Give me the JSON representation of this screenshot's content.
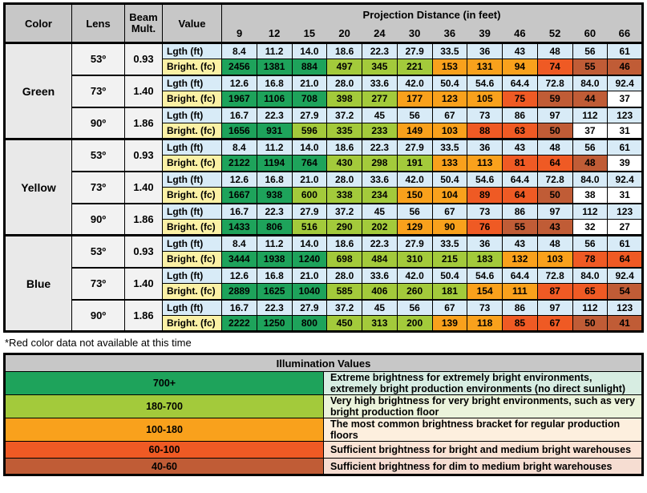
{
  "chart_data": {
    "type": "table",
    "headers": {
      "color": "Color",
      "lens": "Lens",
      "beam": "Beam Mult.",
      "value": "Value",
      "projection": "Projection Distance (in feet)"
    },
    "distances": [
      "9",
      "12",
      "15",
      "20",
      "24",
      "30",
      "36",
      "39",
      "46",
      "52",
      "60",
      "66"
    ],
    "row_labels": {
      "lgth": "Lgth (ft)",
      "bright": "Bright. (fc)"
    },
    "sections": [
      {
        "color": "Green",
        "groups": [
          {
            "lens": "53º",
            "beam": "0.93",
            "lgth": [
              "8.4",
              "11.2",
              "14.0",
              "18.6",
              "22.3",
              "27.9",
              "33.5",
              "36",
              "43",
              "48",
              "56",
              "61"
            ],
            "bright": [
              "2456",
              "1381",
              "884",
              "497",
              "345",
              "221",
              "153",
              "131",
              "94",
              "74",
              "55",
              "46"
            ],
            "bright_colors": [
              "dg",
              "dg",
              "dg",
              "lg",
              "lg",
              "lg",
              "or",
              "or",
              "or",
              "ro",
              "br",
              "br"
            ]
          },
          {
            "lens": "73º",
            "beam": "1.40",
            "lgth": [
              "12.6",
              "16.8",
              "21.0",
              "28.0",
              "33.6",
              "42.0",
              "50.4",
              "54.6",
              "64.4",
              "72.8",
              "84.0",
              "92.4"
            ],
            "bright": [
              "1967",
              "1106",
              "708",
              "398",
              "277",
              "177",
              "123",
              "105",
              "75",
              "59",
              "44",
              "37"
            ],
            "bright_colors": [
              "dg",
              "dg",
              "dg",
              "lg",
              "lg",
              "or",
              "or",
              "or",
              "ro",
              "br",
              "br",
              "wh"
            ]
          },
          {
            "lens": "90º",
            "beam": "1.86",
            "lgth": [
              "16.7",
              "22.3",
              "27.9",
              "37.2",
              "45",
              "56",
              "67",
              "73",
              "86",
              "97",
              "112",
              "123"
            ],
            "bright": [
              "1656",
              "931",
              "596",
              "335",
              "233",
              "149",
              "103",
              "88",
              "63",
              "50",
              "37",
              "31"
            ],
            "bright_colors": [
              "dg",
              "dg",
              "lg",
              "lg",
              "lg",
              "or",
              "or",
              "ro",
              "ro",
              "br",
              "wh",
              "wh"
            ]
          }
        ]
      },
      {
        "color": "Yellow",
        "groups": [
          {
            "lens": "53º",
            "beam": "0.93",
            "lgth": [
              "8.4",
              "11.2",
              "14.0",
              "18.6",
              "22.3",
              "27.9",
              "33.5",
              "36",
              "43",
              "48",
              "56",
              "61"
            ],
            "bright": [
              "2122",
              "1194",
              "764",
              "430",
              "298",
              "191",
              "133",
              "113",
              "81",
              "64",
              "48",
              "39"
            ],
            "bright_colors": [
              "dg",
              "dg",
              "dg",
              "lg",
              "lg",
              "lg",
              "or",
              "or",
              "ro",
              "ro",
              "br",
              "wh"
            ]
          },
          {
            "lens": "73º",
            "beam": "1.40",
            "lgth": [
              "12.6",
              "16.8",
              "21.0",
              "28.0",
              "33.6",
              "42.0",
              "50.4",
              "54.6",
              "64.4",
              "72.8",
              "84.0",
              "92.4"
            ],
            "bright": [
              "1667",
              "938",
              "600",
              "338",
              "234",
              "150",
              "104",
              "89",
              "64",
              "50",
              "38",
              "31"
            ],
            "bright_colors": [
              "dg",
              "dg",
              "lg",
              "lg",
              "lg",
              "or",
              "or",
              "ro",
              "ro",
              "br",
              "wh",
              "wh"
            ]
          },
          {
            "lens": "90º",
            "beam": "1.86",
            "lgth": [
              "16.7",
              "22.3",
              "27.9",
              "37.2",
              "45",
              "56",
              "67",
              "73",
              "86",
              "97",
              "112",
              "123"
            ],
            "bright": [
              "1433",
              "806",
              "516",
              "290",
              "202",
              "129",
              "90",
              "76",
              "55",
              "43",
              "32",
              "27"
            ],
            "bright_colors": [
              "dg",
              "dg",
              "lg",
              "lg",
              "lg",
              "or",
              "or",
              "ro",
              "br",
              "br",
              "wh",
              "wh"
            ]
          }
        ]
      },
      {
        "color": "Blue",
        "groups": [
          {
            "lens": "53º",
            "beam": "0.93",
            "lgth": [
              "8.4",
              "11.2",
              "14.0",
              "18.6",
              "22.3",
              "27.9",
              "33.5",
              "36",
              "43",
              "48",
              "56",
              "61"
            ],
            "bright": [
              "3444",
              "1938",
              "1240",
              "698",
              "484",
              "310",
              "215",
              "183",
              "132",
              "103",
              "78",
              "64"
            ],
            "bright_colors": [
              "dg",
              "dg",
              "dg",
              "lg",
              "lg",
              "lg",
              "lg",
              "lg",
              "or",
              "or",
              "ro",
              "ro"
            ]
          },
          {
            "lens": "73º",
            "beam": "1.40",
            "lgth": [
              "12.6",
              "16.8",
              "21.0",
              "28.0",
              "33.6",
              "42.0",
              "50.4",
              "54.6",
              "64.4",
              "72.8",
              "84.0",
              "92.4"
            ],
            "bright": [
              "2889",
              "1625",
              "1040",
              "585",
              "406",
              "260",
              "181",
              "154",
              "111",
              "87",
              "65",
              "54"
            ],
            "bright_colors": [
              "dg",
              "dg",
              "dg",
              "lg",
              "lg",
              "lg",
              "lg",
              "or",
              "or",
              "ro",
              "ro",
              "br"
            ]
          },
          {
            "lens": "90º",
            "beam": "1.86",
            "lgth": [
              "16.7",
              "22.3",
              "27.9",
              "37.2",
              "45",
              "56",
              "67",
              "73",
              "86",
              "97",
              "112",
              "123"
            ],
            "bright": [
              "2222",
              "1250",
              "800",
              "450",
              "313",
              "200",
              "139",
              "118",
              "85",
              "67",
              "50",
              "41"
            ],
            "bright_colors": [
              "dg",
              "dg",
              "dg",
              "lg",
              "lg",
              "lg",
              "or",
              "or",
              "ro",
              "ro",
              "br",
              "br"
            ]
          }
        ]
      }
    ]
  },
  "footnote": "*Red color data not available at this time",
  "legend": {
    "title": "Illumination Values",
    "rows": [
      {
        "range": "700+",
        "swatch": "dg",
        "tint": "tint_dg",
        "text": "Extreme brightness for extremely bright environments, extremely bright production environments (no direct sunlight)"
      },
      {
        "range": "180-700",
        "swatch": "lg",
        "tint": "tint_lg",
        "text": "Very high brightness for very bright environments, such as very bright production floor"
      },
      {
        "range": "100-180",
        "swatch": "or",
        "tint": "tint_or",
        "text": "The most common brightness bracket for regular production floors"
      },
      {
        "range": "60-100",
        "swatch": "ro",
        "tint": "tint_ro",
        "text": "Sufficient brightness for bright and medium bright warehouses"
      },
      {
        "range": "40-60",
        "swatch": "br",
        "tint": "tint_br",
        "text": "Sufficient brightness for dim to medium bright warehouses"
      }
    ]
  },
  "colors": {
    "dg": "#1EA35B",
    "lg": "#A3CA3B",
    "or": "#F9A11C",
    "ro": "#EF5A24",
    "br": "#C05C36",
    "wh": "#FFFFFF",
    "header_gray": "#C7C7C7",
    "light_blue": "#D8EBF7",
    "pale_yellow": "#FBF1A5",
    "color_cell_gray": "#E9E9E9",
    "lens_cell_gray": "#F2F2F2",
    "tint_dg": "#D7EDE2",
    "tint_lg": "#EBF3DB",
    "tint_or": "#FDEFDE",
    "tint_ro": "#FBE3D5",
    "tint_br": "#F6DDD2"
  }
}
